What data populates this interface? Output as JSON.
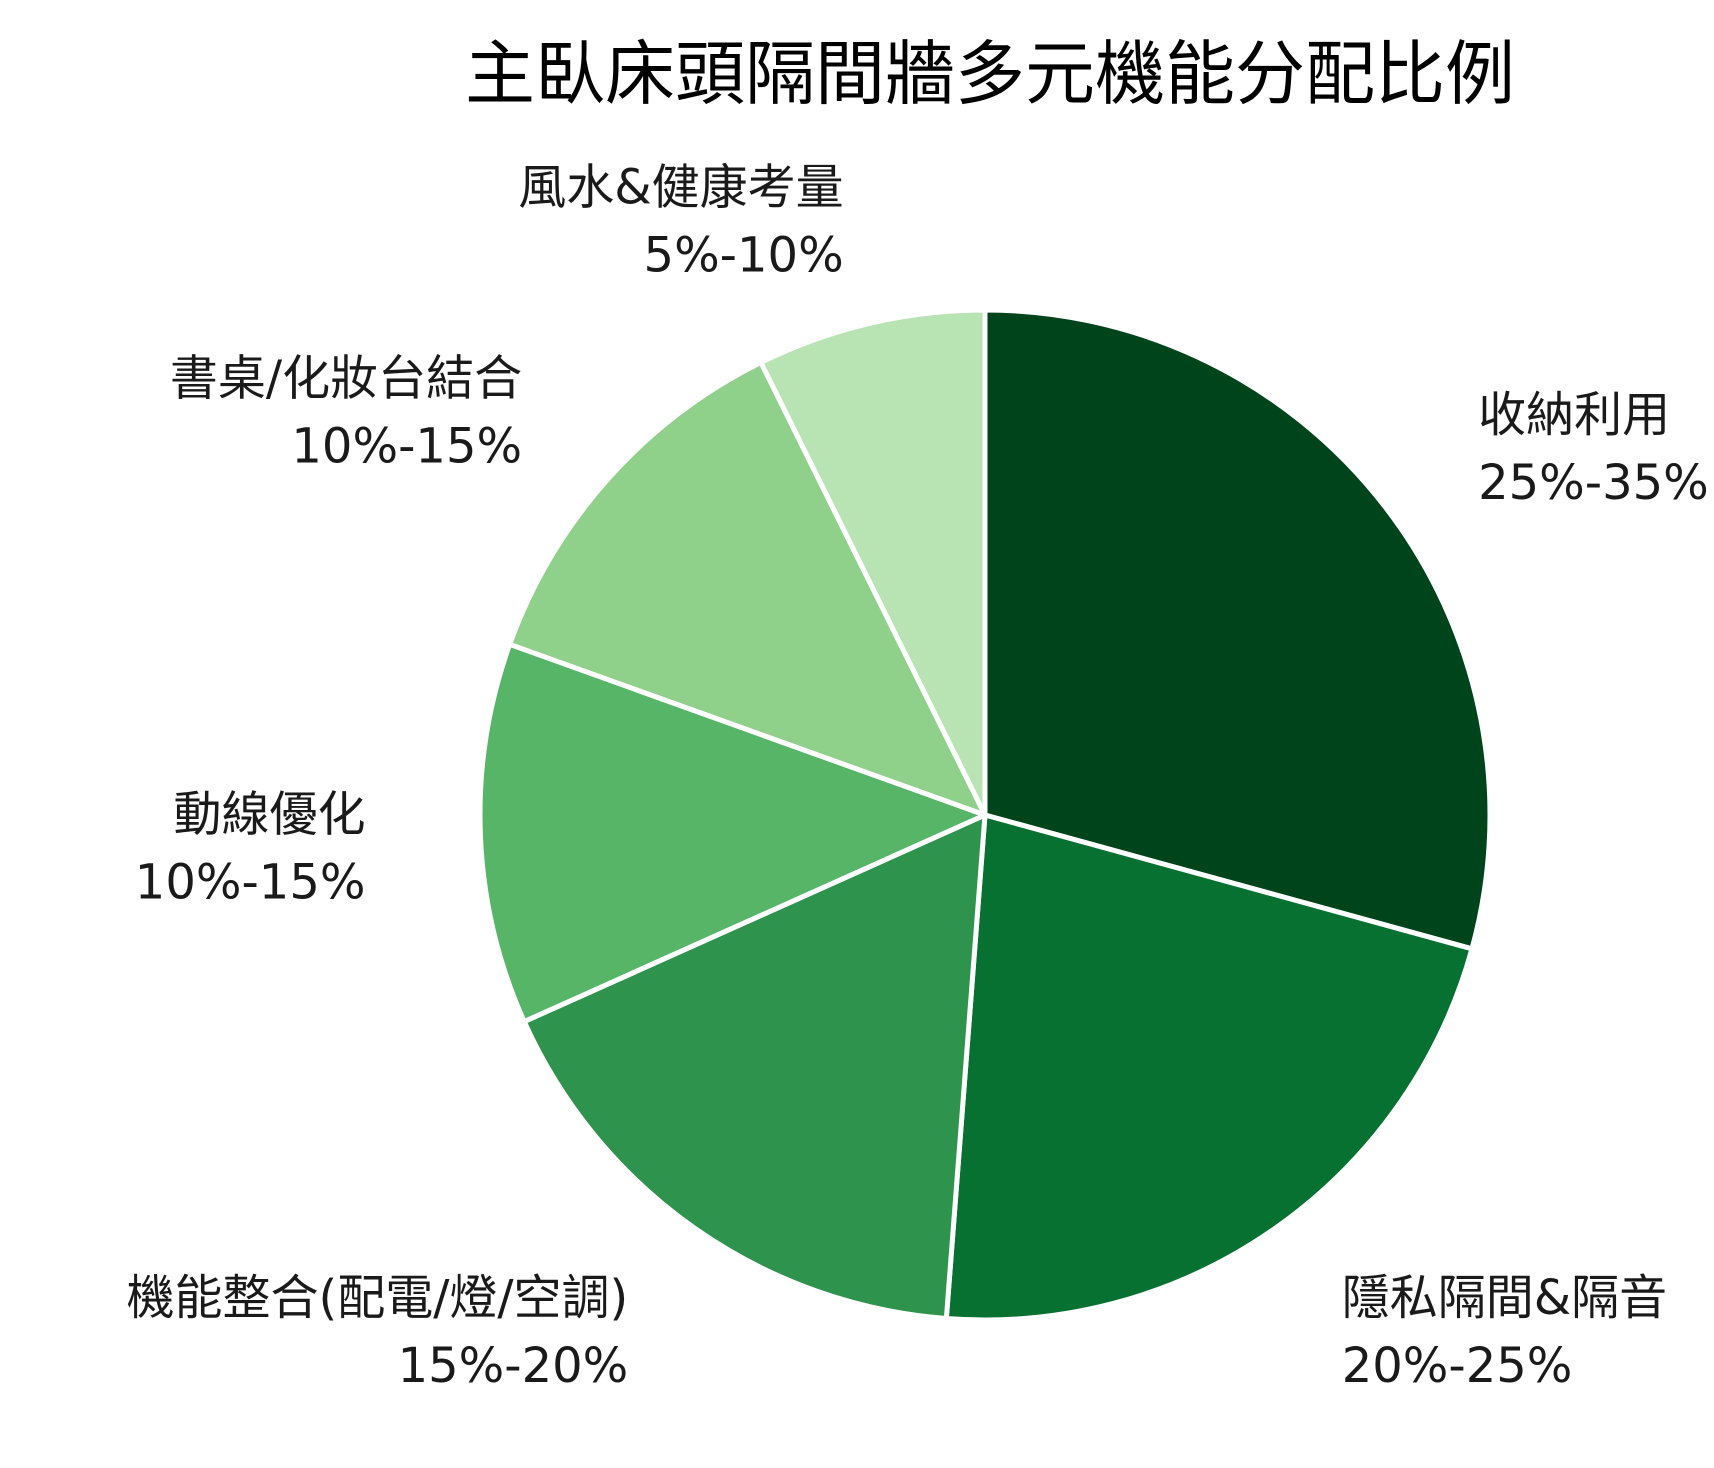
{
  "chart_data": {
    "type": "pie",
    "title": "主臥床頭隔間牆多元機能分配比例",
    "start_angle": "12 o'clock",
    "direction": "clockwise",
    "slices": [
      {
        "name": "收納利用",
        "range": "25%-35%",
        "value": 30,
        "color": "#00441b"
      },
      {
        "name": "隱私隔間&隔音",
        "range": "20%-25%",
        "value": 22.5,
        "color": "#067130"
      },
      {
        "name": "機能整合(配電/燈/空調)",
        "range": "15%-20%",
        "value": 17.5,
        "color": "#2d934d"
      },
      {
        "name": "動線優化",
        "range": "10%-15%",
        "value": 12.5,
        "color": "#56b567"
      },
      {
        "name": "書桌/化妝台結合",
        "range": "10%-15%",
        "value": 12.5,
        "color": "#8fd08a"
      },
      {
        "name": "風水&健康考量",
        "range": "5%-10%",
        "value": 7.5,
        "color": "#b8e3b2"
      }
    ]
  }
}
